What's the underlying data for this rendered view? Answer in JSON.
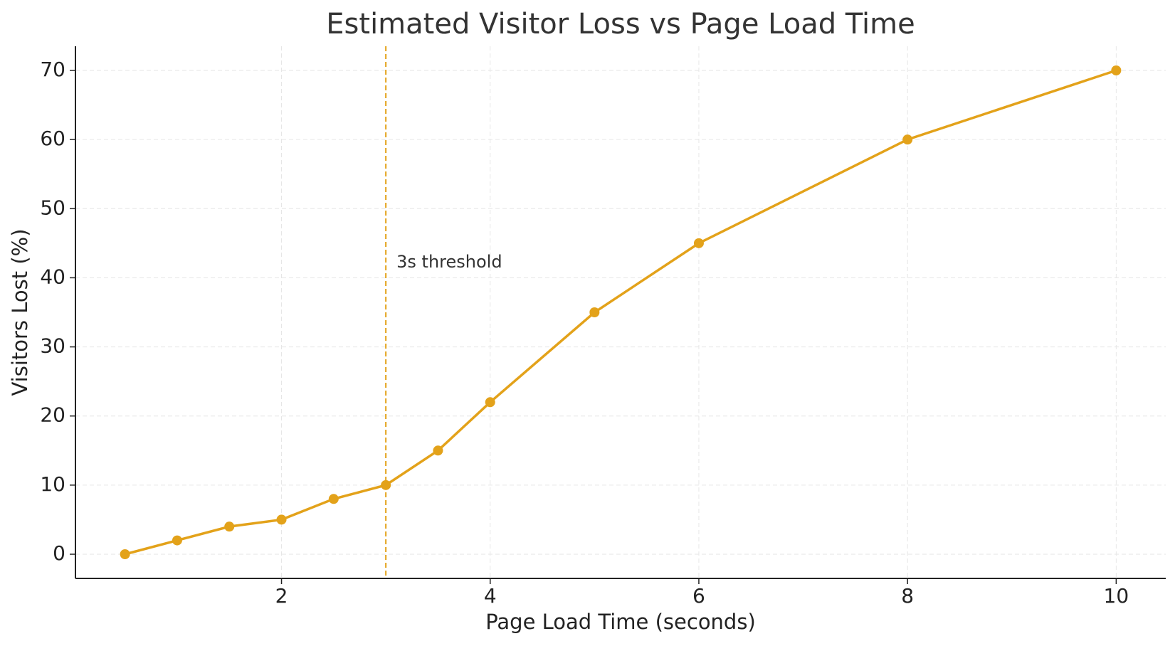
{
  "chart_data": {
    "type": "line",
    "title": "Estimated Visitor Loss vs Page Load Time",
    "x_label": "Page Load Time (seconds)",
    "y_label": "Visitors Lost (%)",
    "x": [
      0.5,
      1,
      1.5,
      2,
      2.5,
      3,
      3.5,
      4,
      5,
      6,
      8,
      10
    ],
    "series": [
      {
        "name": "Visitors Lost",
        "color": "#e3a21a",
        "values": [
          0,
          2,
          4,
          5,
          8,
          10,
          15,
          22,
          35,
          45,
          60,
          70
        ]
      }
    ],
    "xlim": [
      0.025,
      10.475
    ],
    "xticks": [
      2,
      4,
      6,
      8,
      10
    ],
    "ylim": [
      -3.5,
      73.5
    ],
    "yticks": [
      0,
      10,
      20,
      30,
      40,
      50,
      60,
      70
    ],
    "grid": true,
    "legend": false,
    "threshold": {
      "x": 3,
      "label": "3s threshold",
      "color": "#e3a21a"
    }
  }
}
